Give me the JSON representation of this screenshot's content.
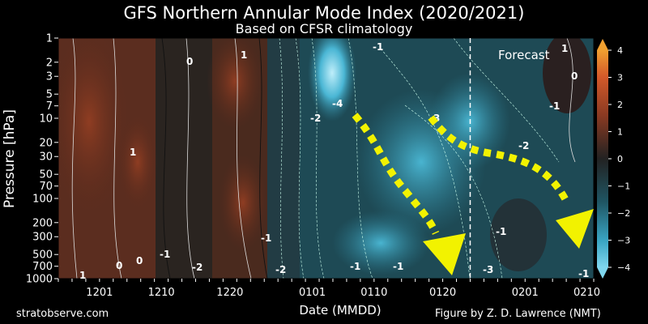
{
  "header": {
    "title": "GFS Northern Annular Mode Index (2020/2021)",
    "subtitle": "Based on CFSR climatology"
  },
  "footer": {
    "site": "stratobserve.com",
    "credit": "Figure by Z. D. Lawrence (NMT)"
  },
  "annotation": {
    "forecast_label": "Forecast"
  },
  "colors": {
    "positive": "#8a3a22",
    "neutral": "#1a1a1a",
    "negative": "#3aa6c4",
    "arrow": "#f2f200"
  },
  "chart_data": {
    "type": "heatmap",
    "title": "GFS Northern Annular Mode Index (2020/2021)",
    "subtitle": "Based on CFSR climatology",
    "xlabel": "Date (MMDD)",
    "ylabel": "Pressure [hPa]",
    "x_ticks": [
      "1201",
      "1210",
      "1220",
      "0101",
      "0110",
      "0120",
      "0201",
      "0210"
    ],
    "y_ticks": [
      1,
      2,
      3,
      5,
      7,
      10,
      20,
      30,
      50,
      70,
      100,
      200,
      300,
      500,
      700,
      1000
    ],
    "y_scale": "log",
    "colorbar": {
      "ticks": [
        4,
        3,
        2,
        1,
        0,
        -1,
        -2,
        -3,
        -4
      ],
      "range": [
        -4,
        4
      ]
    },
    "forecast_start": "0124",
    "contour_labels": [
      "1",
      "0",
      "-1",
      "-2",
      "-3",
      "-4"
    ]
  }
}
